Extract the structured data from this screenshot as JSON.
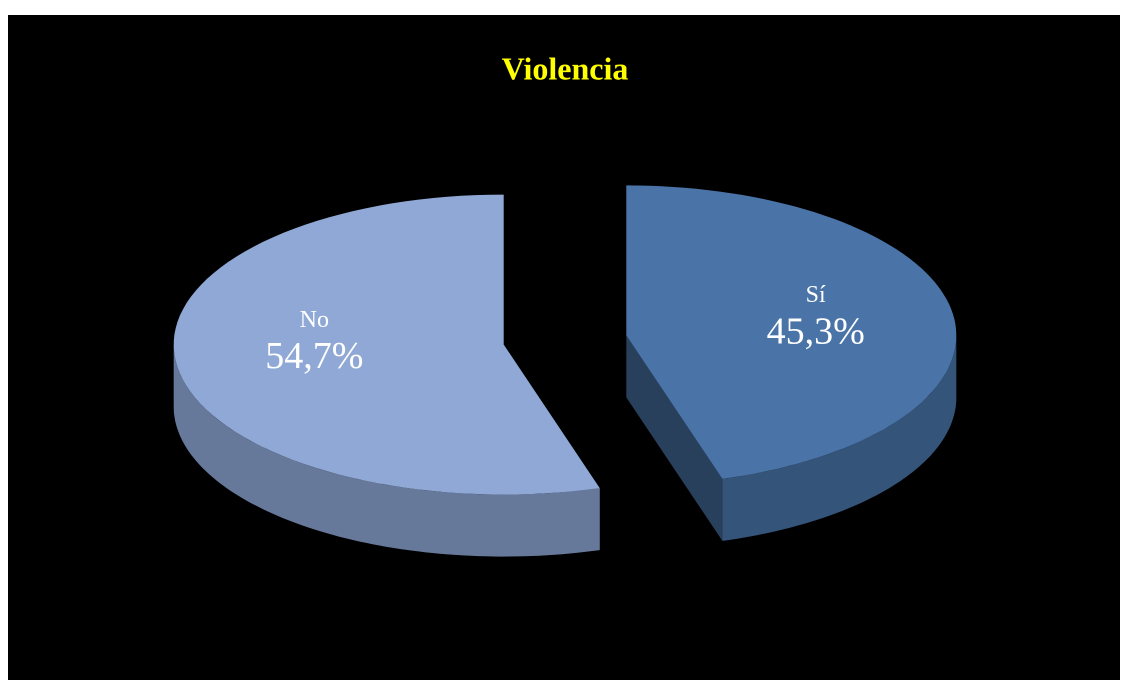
{
  "chart_data": {
    "type": "pie",
    "title": "Violencia",
    "categories": [
      "No",
      "Sí"
    ],
    "values": [
      54.7,
      45.3
    ],
    "value_labels": [
      "54,7%",
      "45,3%"
    ],
    "colors": [
      "#8fa8d6",
      "#4a74a8"
    ],
    "exploded": true,
    "three_d": true
  }
}
